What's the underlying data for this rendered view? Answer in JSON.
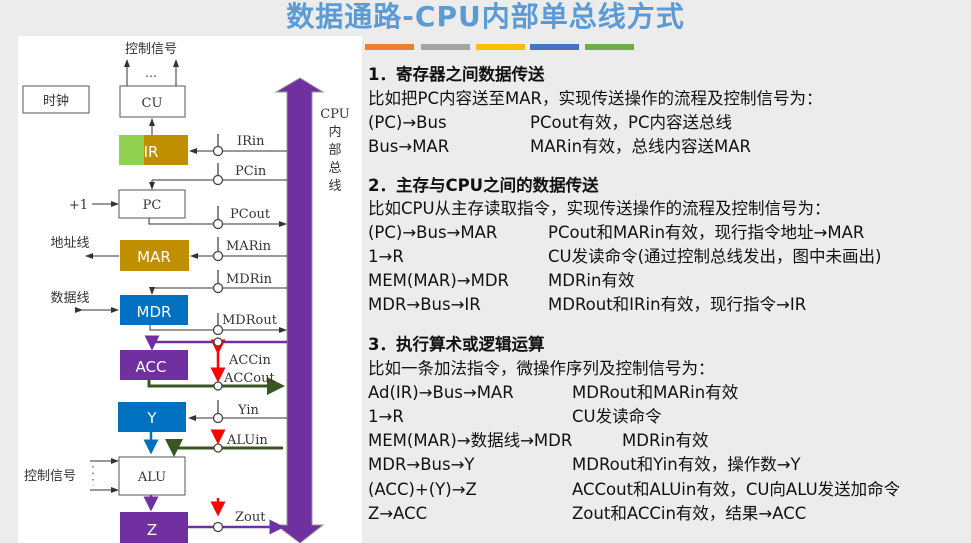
{
  "title": "数据通路-CPU内部单总线方式",
  "accent_bars": [
    "#ed7d31",
    "#a5a5a5",
    "#ffc000",
    "#4472c4",
    "#70ad47"
  ],
  "diagram": {
    "clock": "时钟",
    "control_signal_top": "控制信号",
    "dots": "…",
    "cu": "CU",
    "ir": "IR",
    "pc": "PC",
    "plus_one": "+1",
    "mar": "MAR",
    "address_line": "地址线",
    "mdr": "MDR",
    "data_line": "数据线",
    "acc": "ACC",
    "y": "Y",
    "alu": "ALU",
    "control_signal_alu": "控制信号",
    "z": "Z",
    "bus_label": [
      "CPU",
      "内",
      "部",
      "总",
      "线"
    ],
    "signals": {
      "irin": "IRin",
      "pcin": "PCin",
      "pcout": "PCout",
      "marin": "MARin",
      "mdrin": "MDRin",
      "mdrout": "MDRout",
      "accin": "ACCin",
      "accout": "ACCout",
      "yin": "Yin",
      "aluin": "ALUin",
      "zout": "Zout"
    },
    "colors": {
      "bus": "#7030a0",
      "ir": "#bf8f00",
      "ir_green": "#92d050",
      "mar": "#bf8f00",
      "mdr": "#0070c0",
      "acc": "#7030a0",
      "y": "#0070c0",
      "z": "#7030a0",
      "green_path": "#375623",
      "red_signal": "#ff0000"
    }
  },
  "sections": [
    {
      "heading": "1．寄存器之间数据传送",
      "intro": "比如把PC内容送至MAR，实现传送操作的流程及控制信号为：",
      "rows": [
        [
          "(PC)→Bus",
          "PCout有效，PC内容送总线"
        ],
        [
          "Bus→MAR",
          "MARin有效，总线内容送MAR"
        ]
      ]
    },
    {
      "heading": "2．主存与CPU之间的数据传送",
      "intro": "比如CPU从主存读取指令，实现传送操作的流程及控制信号为：",
      "rows": [
        [
          "(PC)→Bus→MAR",
          "PCout和MARin有效，现行指令地址→MAR"
        ],
        [
          "1→R",
          "CU发读命令(通过控制总线发出，图中未画出)"
        ],
        [
          "MEM(MAR)→MDR",
          "MDRin有效"
        ],
        [
          "MDR→Bus→IR",
          "MDRout和IRin有效，现行指令→IR"
        ]
      ]
    },
    {
      "heading": "3．执行算术或逻辑运算",
      "intro": "比如一条加法指令，微操作序列及控制信号为：",
      "rows": [
        [
          "Ad(IR)→Bus→MAR",
          "MDRout和MARin有效"
        ],
        [
          "1→R",
          "CU发读命令"
        ],
        [
          "MEM(MAR)→数据线→MDR",
          "MDRin有效"
        ],
        [
          "MDR→Bus→Y",
          "MDRout和Yin有效，操作数→Y"
        ],
        [
          "(ACC)+(Y)→Z",
          "ACCout和ALUin有效，CU向ALU发送加命令"
        ],
        [
          "Z→ACC",
          "Zout和ACCin有效，结果→ACC"
        ]
      ]
    }
  ]
}
